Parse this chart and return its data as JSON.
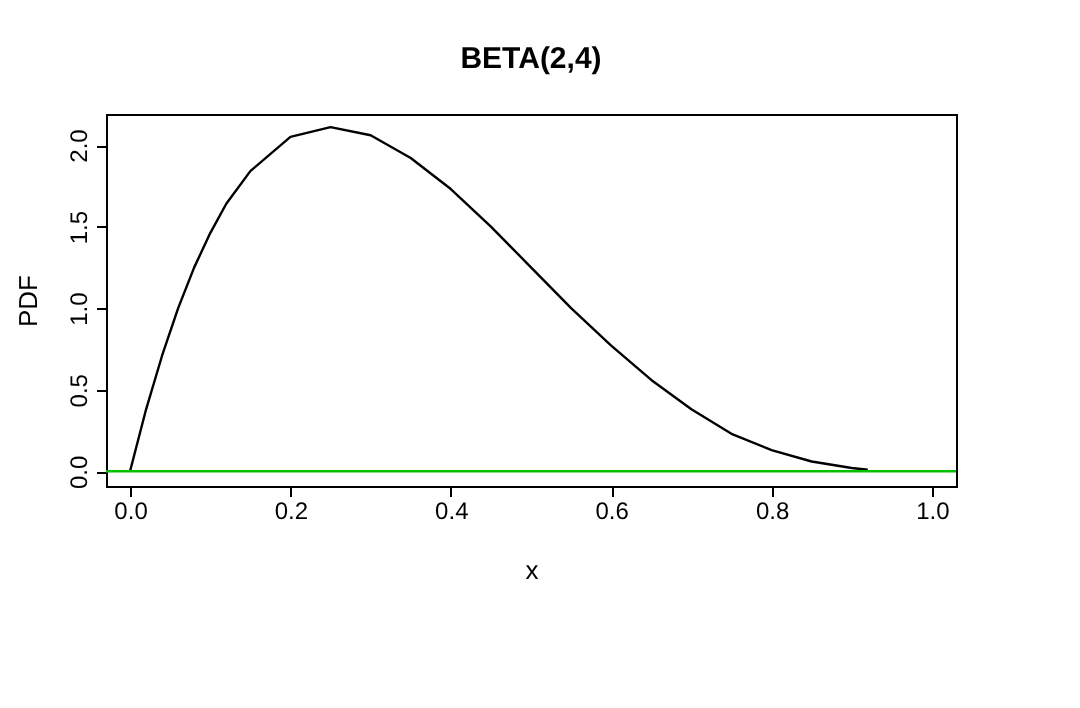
{
  "chart_data": {
    "type": "line",
    "title": "BETA(2,4)",
    "xlabel": "x",
    "ylabel": "PDF",
    "x": [
      0,
      0.02,
      0.04,
      0.06,
      0.08,
      0.1,
      0.12,
      0.15,
      0.2,
      0.25,
      0.3,
      0.35,
      0.4,
      0.45,
      0.5,
      0.55,
      0.6,
      0.65,
      0.7,
      0.75,
      0.8,
      0.85,
      0.9,
      0.92
    ],
    "series": [
      {
        "color": "#000000",
        "values": [
          0,
          0.38,
          0.71,
          1.0,
          1.25,
          1.46,
          1.64,
          1.84,
          2.05,
          2.11,
          2.06,
          1.92,
          1.73,
          1.5,
          1.25,
          1.0,
          0.77,
          0.56,
          0.38,
          0.23,
          0.13,
          0.06,
          0.02,
          0.01
        ]
      }
    ],
    "xlim": [
      -0.03,
      1.03
    ],
    "ylim": [
      -0.09,
      2.19
    ],
    "xticks": [
      {
        "value": 0,
        "label": "0.0"
      },
      0.2,
      0.4,
      0.6,
      0.8,
      {
        "value": 1,
        "label": "1.0"
      }
    ],
    "yticks": [
      {
        "value": 0,
        "label": "0.0"
      },
      0.5,
      {
        "value": 1,
        "label": "1.0"
      },
      1.5,
      {
        "value": 2,
        "label": "2.0"
      }
    ],
    "ref_lines": [
      {
        "axis": "y",
        "value": 0,
        "color": "#00c000"
      }
    ],
    "grid": false,
    "marker": "none",
    "line_style": "solid"
  }
}
